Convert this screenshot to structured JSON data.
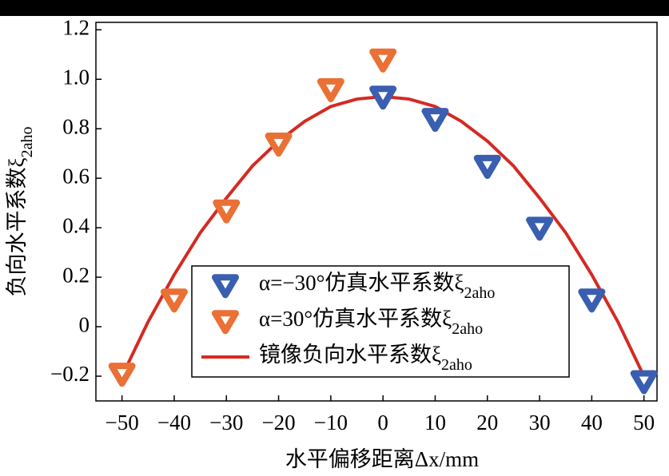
{
  "chart_data": {
    "type": "scatter",
    "x_label": "水平偏移距离Δx/mm",
    "y_label": "负向水平系数ξ2aho",
    "xlim": [
      -55,
      52.5
    ],
    "ylim": [
      -0.3,
      1.23
    ],
    "xticks": [
      {
        "value": -50,
        "label": "−50"
      },
      {
        "value": -40,
        "label": "−40"
      },
      {
        "value": -30,
        "label": "−30"
      },
      {
        "value": -20,
        "label": "−20"
      },
      {
        "value": -10,
        "label": "−10"
      },
      0,
      10,
      20,
      30,
      40,
      50
    ],
    "yticks": [
      {
        "value": -0.2,
        "label": "−0.2"
      },
      0,
      0.2,
      0.4,
      0.6,
      0.8,
      {
        "value": 1,
        "label": "1.0"
      },
      1.2
    ],
    "legend": "lower center",
    "series": [
      {
        "name": "α=−30°仿真水平系数ξ2aho",
        "type": "scatter",
        "color": "#3a5eb0",
        "x": [
          0,
          10,
          20,
          30,
          40,
          50
        ],
        "values": [
          0.93,
          0.84,
          0.65,
          0.4,
          0.11,
          -0.22
        ]
      },
      {
        "name": "α=30°仿真水平系数ξ2aho",
        "type": "scatter",
        "color": "#ea7035",
        "x": [
          -50,
          -40,
          -30,
          -20,
          -10,
          0
        ],
        "values": [
          -0.19,
          0.11,
          0.47,
          0.74,
          0.96,
          1.08
        ]
      },
      {
        "name": "镜像负向水平系数ξ2aho",
        "type": "line",
        "color": "#d42a22",
        "x": [
          -50,
          -45,
          -40,
          -35,
          -30,
          -25,
          -20,
          -15,
          -10,
          -5,
          0,
          5,
          10,
          15,
          20,
          25,
          30,
          35,
          40,
          45,
          50
        ],
        "values": [
          -0.2,
          0.02,
          0.21,
          0.38,
          0.52,
          0.65,
          0.75,
          0.83,
          0.89,
          0.92,
          0.93,
          0.92,
          0.89,
          0.83,
          0.75,
          0.65,
          0.52,
          0.38,
          0.21,
          0.02,
          -0.2
        ]
      }
    ]
  }
}
